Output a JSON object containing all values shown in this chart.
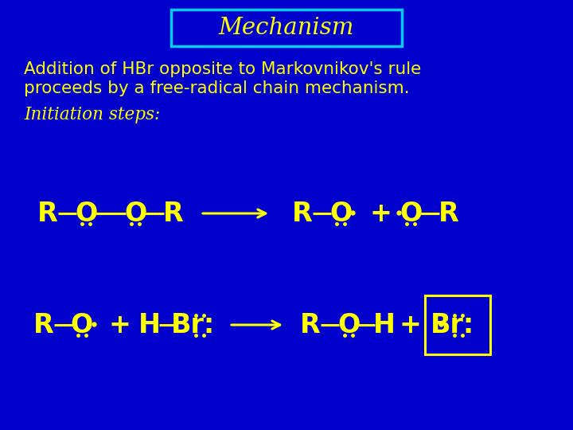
{
  "bg_color": "#0000CC",
  "yellow": "#FFFF00",
  "title_text": "Mechanism",
  "title_box_color": "#00CCFF",
  "desc_line1": "Addition of HBr opposite to Markovnikov's rule",
  "desc_line2": "proceeds by a free-radical chain mechanism.",
  "initiation_text": "Initiation steps:",
  "fig_width": 7.2,
  "fig_height": 5.4,
  "dpi": 100
}
